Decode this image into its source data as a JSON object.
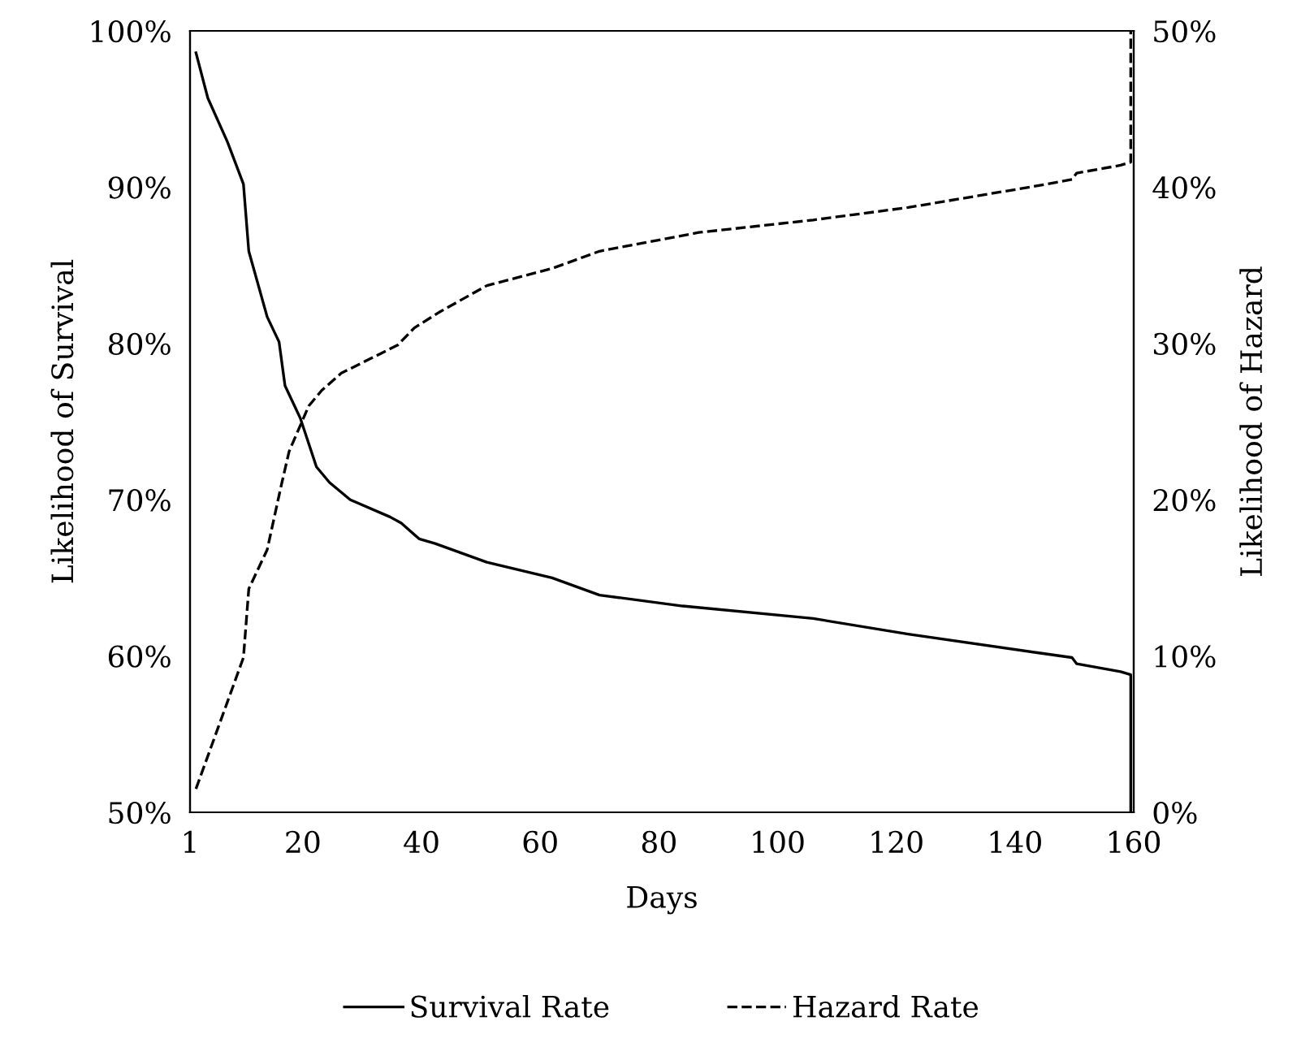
{
  "chart_data": {
    "type": "line",
    "xlabel": "Days",
    "ylabel": "Likelihood of Survival",
    "y2label": "Likelihood of Hazard",
    "xlim": [
      1,
      160
    ],
    "xticks": [
      1,
      20,
      40,
      60,
      80,
      100,
      120,
      140,
      160
    ],
    "ylim": [
      50,
      100
    ],
    "yticks": [
      {
        "value": 50,
        "label": "50%"
      },
      {
        "value": 60,
        "label": "60%"
      },
      {
        "value": 70,
        "label": "70%"
      },
      {
        "value": 80,
        "label": "80%"
      },
      {
        "value": 90,
        "label": "90%"
      },
      {
        "value": 100,
        "label": "100%"
      }
    ],
    "y2lim": [
      0,
      50
    ],
    "y2ticks": [
      {
        "value": 0,
        "label": "0%"
      },
      {
        "value": 10,
        "label": "10%"
      },
      {
        "value": 20,
        "label": "20%"
      },
      {
        "value": 30,
        "label": "30%"
      },
      {
        "value": 40,
        "label": "40%"
      },
      {
        "value": 50,
        "label": "50%"
      }
    ],
    "grid": false,
    "legend": "bottom",
    "marker": "none",
    "series": [
      {
        "name": "Survival Rate",
        "color": "#000000",
        "line_style": "solid",
        "x": [
          2,
          4,
          7.3,
          10,
          10.9,
          14,
          16,
          17,
          19.6,
          22.3,
          24.5,
          28,
          34.7,
          36.6,
          39.6,
          42.3,
          51,
          62,
          70,
          84,
          106,
          122,
          144,
          149.6,
          150.4,
          157.8,
          159.5,
          159.5
        ],
        "values": [
          98.6,
          95.7,
          92.9,
          90.2,
          85.9,
          81.7,
          80.1,
          77.3,
          75.2,
          72.1,
          71.1,
          70.0,
          68.9,
          68.5,
          67.5,
          67.2,
          66.0,
          65.0,
          63.9,
          63.2,
          62.4,
          61.4,
          60.2,
          59.9,
          59.5,
          59.0,
          58.8,
          50
        ]
      },
      {
        "name": "Hazard Rate",
        "color": "#000000",
        "line_style": "dashed",
        "axis": "y2",
        "x": [
          2,
          10,
          10.9,
          14,
          16.3,
          17.7,
          21,
          23.2,
          26.5,
          36,
          38.8,
          43,
          51,
          62,
          70,
          86.7,
          106,
          122,
          144,
          149.6,
          150.4,
          157.8,
          159.5,
          159.5
        ],
        "values": [
          1.5,
          9.9,
          14.3,
          16.8,
          20.8,
          23.1,
          26.0,
          27.0,
          28.1,
          29.9,
          31.0,
          32.0,
          33.7,
          34.8,
          35.9,
          37.1,
          37.9,
          38.7,
          40.1,
          40.5,
          40.9,
          41.4,
          41.6,
          50
        ]
      }
    ]
  }
}
